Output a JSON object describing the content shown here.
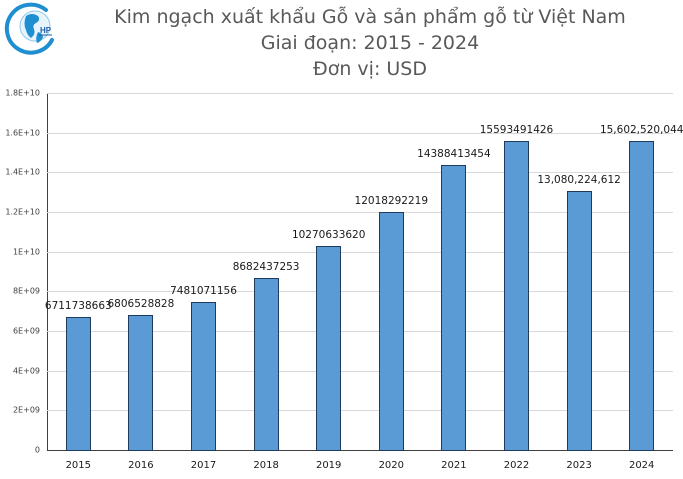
{
  "header": {
    "logo_icon": "globe-hp-logo-icon",
    "logo_text": "HP",
    "title_line1": "Kim ngạch xuất khẩu Gỗ và sản phẩm gỗ từ Việt Nam",
    "title_line2": "Giai đoạn: 2015 - 2024",
    "title_line3": "Đơn vị: USD"
  },
  "colors": {
    "bar_fill": "#5b9bd5",
    "bar_border": "#1f3a5c",
    "title": "#595959",
    "gridline": "#d9d9d9",
    "logo": "#1f8fd1"
  },
  "chart_data": {
    "type": "bar",
    "title": "Kim ngạch xuất khẩu Gỗ và sản phẩm gỗ từ Việt Nam",
    "subtitle": "Giai đoạn: 2015 - 2024 / Đơn vị: USD",
    "xlabel": "",
    "ylabel": "",
    "categories": [
      "2015",
      "2016",
      "2017",
      "2018",
      "2019",
      "2020",
      "2021",
      "2022",
      "2023",
      "2024"
    ],
    "values": [
      6711738663,
      6806528828,
      7481071156,
      8682437253,
      10270633620,
      12018292219,
      14388413454,
      15593491426,
      13080224612,
      15602520044
    ],
    "data_labels": [
      "6711738663",
      "6806528828",
      "7481071156",
      "8682437253",
      "10270633620",
      "12018292219",
      "14388413454",
      "15593491426",
      "13,080,224,612",
      "15,602,520,044"
    ],
    "ylim": [
      0,
      18000000000
    ],
    "yticks": [
      0,
      2000000000,
      4000000000,
      6000000000,
      8000000000,
      10000000000,
      12000000000,
      14000000000,
      16000000000,
      18000000000
    ],
    "ytick_labels": [
      "0",
      "2E+09",
      "4E+09",
      "6E+09",
      "8E+09",
      "1E+10",
      "1.2E+10",
      "1.4E+10",
      "1.6E+10",
      "1.8E+10"
    ],
    "grid": true,
    "legend": "none"
  }
}
